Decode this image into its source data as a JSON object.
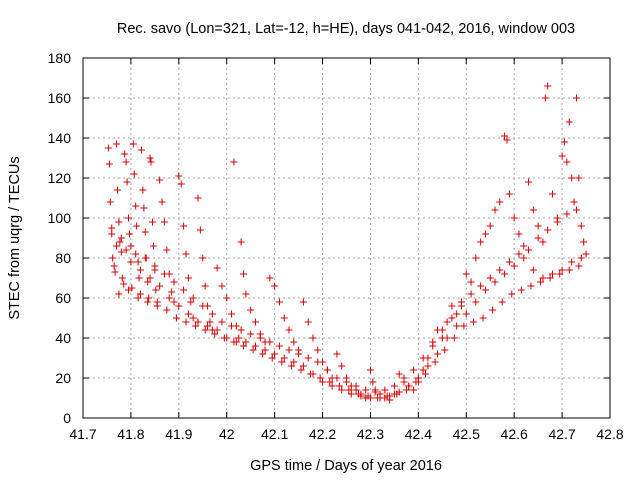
{
  "chart_data": {
    "type": "scatter",
    "title": "Rec. savo (Lon=321, Lat=-12, h=HE), days 041-042, 2016, window 003",
    "xlabel": "GPS time / Days of year 2016",
    "ylabel": "STEC from uqrg / TECUs",
    "xlim": [
      41.7,
      42.8
    ],
    "ylim": [
      0,
      180
    ],
    "xticks": [
      "41.7",
      "41.8",
      "41.9",
      "42",
      "42.1",
      "42.2",
      "42.3",
      "42.4",
      "42.5",
      "42.6",
      "42.7",
      "42.8"
    ],
    "yticks": [
      "0",
      "20",
      "40",
      "60",
      "80",
      "100",
      "120",
      "140",
      "160",
      "180"
    ],
    "grid": true,
    "marker": "plus",
    "color": "#d40000",
    "series": [
      {
        "points": [
          [
            41.753,
            135
          ],
          [
            41.755,
            127
          ],
          [
            41.757,
            108
          ],
          [
            41.76,
            95
          ],
          [
            41.762,
            80
          ],
          [
            41.765,
            76
          ],
          [
            41.767,
            73
          ],
          [
            41.77,
            137
          ],
          [
            41.772,
            114
          ],
          [
            41.775,
            98
          ],
          [
            41.777,
            88
          ],
          [
            41.78,
            83
          ],
          [
            41.782,
            70
          ],
          [
            41.785,
            67
          ],
          [
            41.787,
            132
          ],
          [
            41.79,
            128
          ],
          [
            41.792,
            118
          ],
          [
            41.795,
            100
          ],
          [
            41.797,
            92
          ],
          [
            41.8,
            86
          ],
          [
            41.802,
            65
          ],
          [
            41.805,
            137
          ],
          [
            41.807,
            122
          ],
          [
            41.81,
            106
          ],
          [
            41.812,
            96
          ],
          [
            41.815,
            78
          ],
          [
            41.817,
            70
          ],
          [
            41.82,
            62
          ],
          [
            41.822,
            134
          ],
          [
            41.825,
            114
          ],
          [
            41.827,
            105
          ],
          [
            41.83,
            93
          ],
          [
            41.832,
            80
          ],
          [
            41.835,
            68
          ],
          [
            41.837,
            60
          ],
          [
            41.84,
            130
          ],
          [
            41.842,
            128
          ],
          [
            41.845,
            98
          ],
          [
            41.847,
            86
          ],
          [
            41.85,
            74
          ],
          [
            41.852,
            64
          ],
          [
            41.855,
            58
          ],
          [
            41.86,
            119
          ],
          [
            41.865,
            108
          ],
          [
            41.87,
            98
          ],
          [
            41.875,
            84
          ],
          [
            41.88,
            72
          ],
          [
            41.885,
            63
          ],
          [
            41.89,
            58
          ],
          [
            41.9,
            121
          ],
          [
            41.905,
            117
          ],
          [
            41.91,
            96
          ],
          [
            41.915,
            82
          ],
          [
            41.92,
            70
          ],
          [
            41.925,
            58
          ],
          [
            41.93,
            50
          ],
          [
            41.94,
            110
          ],
          [
            41.945,
            94
          ],
          [
            41.95,
            80
          ],
          [
            41.955,
            66
          ],
          [
            41.96,
            56
          ],
          [
            41.965,
            48
          ],
          [
            41.97,
            44
          ],
          [
            41.98,
            75
          ],
          [
            41.99,
            66
          ],
          [
            42.0,
            60
          ],
          [
            42.01,
            52
          ],
          [
            42.015,
            128
          ],
          [
            42.02,
            46
          ],
          [
            42.025,
            40
          ],
          [
            42.03,
            88
          ],
          [
            42.035,
            72
          ],
          [
            42.04,
            62
          ],
          [
            42.05,
            54
          ],
          [
            42.06,
            48
          ],
          [
            42.07,
            42
          ],
          [
            42.08,
            38
          ],
          [
            42.09,
            70
          ],
          [
            42.1,
            66
          ],
          [
            42.11,
            58
          ],
          [
            42.12,
            50
          ],
          [
            42.13,
            44
          ],
          [
            42.14,
            38
          ],
          [
            42.15,
            34
          ],
          [
            42.16,
            58
          ],
          [
            42.17,
            48
          ],
          [
            42.18,
            40
          ],
          [
            42.19,
            34
          ],
          [
            42.2,
            28
          ],
          [
            42.21,
            24
          ],
          [
            42.22,
            20
          ],
          [
            42.23,
            32
          ],
          [
            42.24,
            26
          ],
          [
            42.25,
            20
          ],
          [
            42.26,
            16
          ],
          [
            42.27,
            14
          ],
          [
            42.28,
            12
          ],
          [
            42.29,
            10
          ],
          [
            42.3,
            24
          ],
          [
            42.305,
            18
          ],
          [
            42.31,
            14
          ],
          [
            42.32,
            12
          ],
          [
            42.33,
            10
          ],
          [
            42.34,
            9
          ],
          [
            42.35,
            12
          ],
          [
            42.36,
            22
          ],
          [
            42.37,
            18
          ],
          [
            42.38,
            16
          ],
          [
            42.39,
            14
          ],
          [
            42.4,
            18
          ],
          [
            42.41,
            24
          ],
          [
            42.42,
            30
          ],
          [
            42.43,
            38
          ],
          [
            42.44,
            44
          ],
          [
            42.45,
            40
          ],
          [
            42.46,
            48
          ],
          [
            42.47,
            56
          ],
          [
            42.48,
            52
          ],
          [
            42.49,
            58
          ],
          [
            42.5,
            72
          ],
          [
            42.51,
            68
          ],
          [
            42.52,
            80
          ],
          [
            42.53,
            88
          ],
          [
            42.54,
            92
          ],
          [
            42.55,
            96
          ],
          [
            42.56,
            104
          ],
          [
            42.57,
            108
          ],
          [
            42.58,
            141
          ],
          [
            42.585,
            139
          ],
          [
            42.59,
            112
          ],
          [
            42.6,
            100
          ],
          [
            42.61,
            92
          ],
          [
            42.62,
            86
          ],
          [
            42.63,
            118
          ],
          [
            42.64,
            104
          ],
          [
            42.65,
            96
          ],
          [
            42.66,
            88
          ],
          [
            42.665,
            160
          ],
          [
            42.67,
            166
          ],
          [
            42.68,
            112
          ],
          [
            42.69,
            100
          ],
          [
            42.7,
            131
          ],
          [
            42.705,
            138
          ],
          [
            42.71,
            128
          ],
          [
            42.715,
            148
          ],
          [
            42.72,
            120
          ],
          [
            42.725,
            108
          ],
          [
            42.73,
            160
          ],
          [
            42.735,
            120
          ],
          [
            42.74,
            96
          ],
          [
            42.745,
            88
          ],
          [
            42.75,
            82
          ],
          [
            41.76,
            92
          ],
          [
            41.78,
            90
          ],
          [
            41.8,
            78
          ],
          [
            41.82,
            74
          ],
          [
            41.84,
            70
          ],
          [
            41.86,
            66
          ],
          [
            41.88,
            60
          ],
          [
            41.9,
            56
          ],
          [
            41.92,
            52
          ],
          [
            41.94,
            48
          ],
          [
            41.96,
            46
          ],
          [
            41.98,
            44
          ],
          [
            42.0,
            40
          ],
          [
            42.02,
            38
          ],
          [
            42.04,
            38
          ],
          [
            42.06,
            36
          ],
          [
            42.08,
            34
          ],
          [
            42.1,
            32
          ],
          [
            42.12,
            30
          ],
          [
            42.14,
            28
          ],
          [
            42.16,
            26
          ],
          [
            42.18,
            22
          ],
          [
            42.2,
            18
          ],
          [
            42.22,
            16
          ],
          [
            42.24,
            14
          ],
          [
            42.26,
            12
          ],
          [
            42.28,
            11
          ],
          [
            42.3,
            10
          ],
          [
            42.32,
            10
          ],
          [
            42.34,
            11
          ],
          [
            42.36,
            13
          ],
          [
            42.38,
            16
          ],
          [
            42.4,
            20
          ],
          [
            42.42,
            26
          ],
          [
            42.44,
            32
          ],
          [
            42.46,
            40
          ],
          [
            42.48,
            46
          ],
          [
            42.5,
            52
          ],
          [
            42.52,
            58
          ],
          [
            42.54,
            64
          ],
          [
            42.56,
            68
          ],
          [
            42.58,
            72
          ],
          [
            42.6,
            76
          ],
          [
            42.62,
            80
          ],
          [
            42.64,
            74
          ],
          [
            42.66,
            70
          ],
          [
            42.68,
            72
          ],
          [
            42.7,
            74
          ],
          [
            42.72,
            78
          ],
          [
            42.74,
            80
          ],
          [
            41.77,
            86
          ],
          [
            41.79,
            84
          ],
          [
            41.81,
            82
          ],
          [
            41.83,
            80
          ],
          [
            41.85,
            76
          ],
          [
            41.87,
            72
          ],
          [
            41.89,
            68
          ],
          [
            41.91,
            64
          ],
          [
            41.93,
            60
          ],
          [
            41.95,
            56
          ],
          [
            41.97,
            52
          ],
          [
            41.99,
            48
          ],
          [
            42.01,
            46
          ],
          [
            42.03,
            44
          ],
          [
            42.05,
            42
          ],
          [
            42.07,
            40
          ],
          [
            42.09,
            38
          ],
          [
            42.11,
            36
          ],
          [
            42.13,
            34
          ],
          [
            42.15,
            32
          ],
          [
            42.17,
            30
          ],
          [
            42.19,
            28
          ],
          [
            42.21,
            24
          ],
          [
            42.23,
            20
          ],
          [
            42.25,
            18
          ],
          [
            42.27,
            16
          ],
          [
            42.29,
            14
          ],
          [
            42.31,
            13
          ],
          [
            42.33,
            14
          ],
          [
            42.35,
            16
          ],
          [
            42.37,
            20
          ],
          [
            42.39,
            24
          ],
          [
            42.41,
            30
          ],
          [
            42.43,
            36
          ],
          [
            42.45,
            44
          ],
          [
            42.47,
            50
          ],
          [
            42.49,
            56
          ],
          [
            42.51,
            62
          ],
          [
            42.53,
            66
          ],
          [
            42.55,
            70
          ],
          [
            42.57,
            74
          ],
          [
            42.59,
            78
          ],
          [
            42.61,
            82
          ],
          [
            42.63,
            84
          ],
          [
            42.65,
            90
          ],
          [
            42.67,
            94
          ],
          [
            42.69,
            98
          ],
          [
            42.71,
            102
          ],
          [
            42.73,
            104
          ],
          [
            41.775,
            62
          ],
          [
            41.795,
            64
          ],
          [
            41.815,
            60
          ],
          [
            41.835,
            58
          ],
          [
            41.855,
            56
          ],
          [
            41.875,
            54
          ],
          [
            41.895,
            50
          ],
          [
            41.915,
            48
          ],
          [
            41.935,
            46
          ],
          [
            41.955,
            44
          ],
          [
            41.975,
            42
          ],
          [
            41.995,
            40
          ],
          [
            42.015,
            38
          ],
          [
            42.035,
            36
          ],
          [
            42.055,
            34
          ],
          [
            42.075,
            32
          ],
          [
            42.095,
            30
          ],
          [
            42.115,
            28
          ],
          [
            42.135,
            26
          ],
          [
            42.155,
            24
          ],
          [
            42.175,
            22
          ],
          [
            42.195,
            20
          ],
          [
            42.215,
            18
          ],
          [
            42.235,
            16
          ],
          [
            42.255,
            14
          ],
          [
            42.275,
            12
          ],
          [
            42.295,
            11
          ],
          [
            42.315,
            10
          ],
          [
            42.335,
            11
          ],
          [
            42.355,
            12
          ],
          [
            42.375,
            14
          ],
          [
            42.395,
            18
          ],
          [
            42.415,
            22
          ],
          [
            42.435,
            28
          ],
          [
            42.455,
            34
          ],
          [
            42.475,
            40
          ],
          [
            42.495,
            46
          ],
          [
            42.515,
            48
          ],
          [
            42.535,
            50
          ],
          [
            42.555,
            54
          ],
          [
            42.575,
            58
          ],
          [
            42.595,
            62
          ],
          [
            42.615,
            64
          ],
          [
            42.635,
            66
          ],
          [
            42.655,
            68
          ],
          [
            42.675,
            70
          ],
          [
            42.695,
            72
          ],
          [
            42.715,
            74
          ],
          [
            42.735,
            76
          ]
        ]
      }
    ]
  }
}
